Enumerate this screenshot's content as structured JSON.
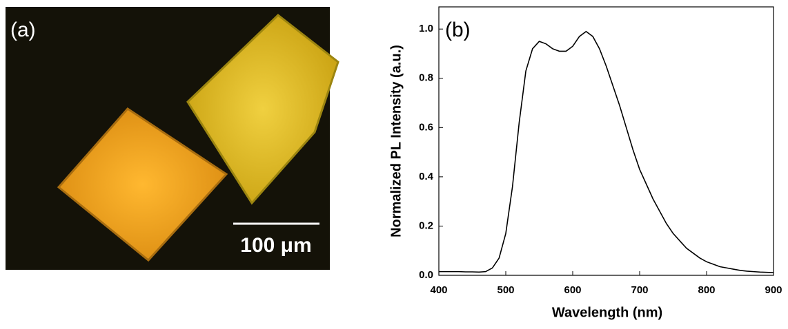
{
  "photo_panel": {
    "label": "(a)",
    "scale_bar_label": "100 μm"
  },
  "chart_data": {
    "type": "line",
    "panel_label": "(b)",
    "x_label": "Wavelength (nm)",
    "y_label": "Normalized PL Intensity (a.u.)",
    "xlim": [
      400,
      900
    ],
    "ylim": [
      0,
      1.09
    ],
    "xticks": [
      400,
      500,
      600,
      700,
      800,
      900
    ],
    "yticks": [
      {
        "value": 0,
        "label": "0.0"
      },
      0.2,
      0.4,
      0.6,
      0.8,
      {
        "value": 1,
        "label": "1.0"
      }
    ],
    "color": "#000000",
    "x": [
      400,
      410,
      420,
      430,
      440,
      450,
      460,
      470,
      480,
      490,
      500,
      510,
      520,
      530,
      540,
      550,
      560,
      570,
      580,
      590,
      600,
      610,
      620,
      630,
      640,
      650,
      660,
      670,
      680,
      690,
      700,
      710,
      720,
      730,
      740,
      750,
      760,
      770,
      780,
      790,
      800,
      810,
      820,
      830,
      840,
      850,
      860,
      870,
      880,
      890,
      900
    ],
    "values": [
      0.015,
      0.015,
      0.015,
      0.015,
      0.014,
      0.014,
      0.013,
      0.015,
      0.03,
      0.07,
      0.17,
      0.36,
      0.62,
      0.83,
      0.92,
      0.95,
      0.94,
      0.92,
      0.91,
      0.91,
      0.93,
      0.97,
      0.99,
      0.97,
      0.92,
      0.85,
      0.77,
      0.69,
      0.6,
      0.51,
      0.43,
      0.37,
      0.31,
      0.26,
      0.21,
      0.17,
      0.14,
      0.11,
      0.09,
      0.07,
      0.055,
      0.045,
      0.035,
      0.03,
      0.025,
      0.02,
      0.017,
      0.015,
      0.013,
      0.012,
      0.011
    ]
  }
}
